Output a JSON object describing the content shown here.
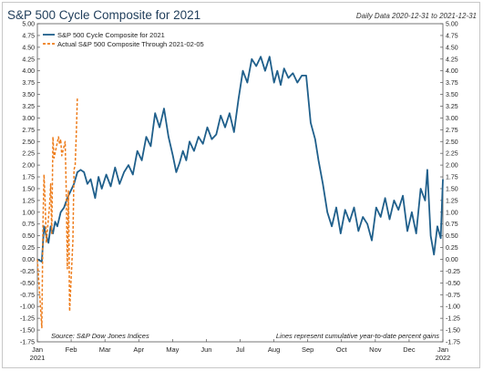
{
  "chart_data": {
    "type": "line",
    "title": "S&P 500 Cycle Composite for 2021",
    "subtitle": "Daily Data 2020-12-31 to 2021-12-31",
    "source": "Source:  S&P Dow Jones Indices",
    "footnote": "Lines represent cumulative year-to-date percent gains",
    "ylim": [
      -1.75,
      5.0
    ],
    "y_ticks": [
      "5.00",
      "4.75",
      "4.50",
      "4.25",
      "4.00",
      "3.75",
      "3.50",
      "3.25",
      "3.00",
      "2.75",
      "2.50",
      "2.25",
      "2.00",
      "1.75",
      "1.50",
      "1.25",
      "1.00",
      "0.75",
      "0.50",
      "0.25",
      "0.00",
      "-0.25",
      "-0.50",
      "-0.75",
      "-1.00",
      "-1.25",
      "-1.50",
      "-1.75"
    ],
    "x_ticks": [
      {
        "label": "Jan",
        "sub": "2021"
      },
      {
        "label": "Feb",
        "sub": ""
      },
      {
        "label": "Mar",
        "sub": ""
      },
      {
        "label": "Apr",
        "sub": ""
      },
      {
        "label": "May",
        "sub": ""
      },
      {
        "label": "Jun",
        "sub": ""
      },
      {
        "label": "Jul",
        "sub": ""
      },
      {
        "label": "Aug",
        "sub": ""
      },
      {
        "label": "Sep",
        "sub": ""
      },
      {
        "label": "Oct",
        "sub": ""
      },
      {
        "label": "Nov",
        "sub": ""
      },
      {
        "label": "Dec",
        "sub": ""
      },
      {
        "label": "Jan",
        "sub": "2022"
      }
    ],
    "legend_position": "top-left",
    "grid": false,
    "series": [
      {
        "name": "S&P 500 Cycle Composite for 2021",
        "color": "#1f5f8b",
        "style": "solid",
        "x": [
          "2020-12-31",
          "2021-01-04",
          "2021-01-06",
          "2021-01-08",
          "2021-01-10",
          "2021-01-12",
          "2021-01-14",
          "2021-01-16",
          "2021-01-18",
          "2021-01-21",
          "2021-01-24",
          "2021-01-27",
          "2021-01-30",
          "2021-02-02",
          "2021-02-05",
          "2021-02-08",
          "2021-02-11",
          "2021-02-14",
          "2021-02-17",
          "2021-02-21",
          "2021-02-24",
          "2021-02-27",
          "2021-03-03",
          "2021-03-07",
          "2021-03-11",
          "2021-03-15",
          "2021-03-19",
          "2021-03-23",
          "2021-03-27",
          "2021-03-31",
          "2021-04-04",
          "2021-04-08",
          "2021-04-12",
          "2021-04-16",
          "2021-04-20",
          "2021-04-24",
          "2021-04-28",
          "2021-05-02",
          "2021-05-05",
          "2021-05-08",
          "2021-05-11",
          "2021-05-14",
          "2021-05-17",
          "2021-05-21",
          "2021-05-25",
          "2021-05-29",
          "2021-06-02",
          "2021-06-06",
          "2021-06-10",
          "2021-06-14",
          "2021-06-18",
          "2021-06-22",
          "2021-06-26",
          "2021-06-30",
          "2021-07-04",
          "2021-07-08",
          "2021-07-12",
          "2021-07-16",
          "2021-07-20",
          "2021-07-24",
          "2021-07-28",
          "2021-08-01",
          "2021-08-04",
          "2021-08-07",
          "2021-08-10",
          "2021-08-14",
          "2021-08-18",
          "2021-08-22",
          "2021-08-26",
          "2021-08-30",
          "2021-09-03",
          "2021-09-07",
          "2021-09-10",
          "2021-09-14",
          "2021-09-18",
          "2021-09-22",
          "2021-09-26",
          "2021-09-30",
          "2021-10-04",
          "2021-10-08",
          "2021-10-12",
          "2021-10-16",
          "2021-10-20",
          "2021-10-24",
          "2021-10-28",
          "2021-11-01",
          "2021-11-05",
          "2021-11-09",
          "2021-11-13",
          "2021-11-17",
          "2021-11-21",
          "2021-11-25",
          "2021-11-29",
          "2021-12-03",
          "2021-12-07",
          "2021-12-11",
          "2021-12-15",
          "2021-12-17",
          "2021-12-20",
          "2021-12-23",
          "2021-12-26",
          "2021-12-29",
          "2021-12-31"
        ],
        "y": [
          0.0,
          -0.05,
          0.7,
          0.5,
          0.35,
          0.7,
          0.55,
          0.8,
          0.7,
          1.0,
          1.1,
          1.3,
          1.45,
          1.6,
          1.85,
          1.9,
          1.85,
          1.6,
          1.7,
          1.3,
          1.75,
          1.5,
          1.8,
          1.55,
          1.95,
          1.6,
          1.85,
          2.0,
          1.8,
          2.3,
          2.1,
          2.6,
          2.4,
          3.1,
          2.8,
          3.2,
          2.6,
          2.2,
          1.85,
          2.05,
          2.3,
          2.1,
          2.5,
          2.3,
          2.6,
          2.45,
          2.8,
          2.55,
          2.65,
          3.05,
          2.8,
          3.1,
          2.7,
          3.4,
          4.0,
          3.75,
          4.25,
          4.1,
          4.3,
          4.0,
          4.3,
          3.75,
          4.0,
          3.7,
          4.05,
          3.85,
          3.95,
          3.75,
          3.9,
          3.9,
          2.9,
          2.55,
          2.1,
          1.6,
          1.0,
          0.7,
          1.1,
          0.55,
          1.05,
          0.8,
          1.1,
          0.6,
          0.9,
          0.75,
          0.4,
          1.1,
          0.9,
          1.3,
          0.85,
          1.25,
          1.05,
          1.35,
          0.6,
          1.0,
          0.55,
          1.5,
          1.25,
          1.9,
          0.5,
          0.1,
          0.7,
          0.45,
          1.7
        ]
      },
      {
        "name": "Actual S&P 500 Composite Through 2021-02-05",
        "color": "#ee7c1a",
        "style": "dashed",
        "x": [
          "2020-12-31",
          "2021-01-04",
          "2021-01-05",
          "2021-01-06",
          "2021-01-07",
          "2021-01-08",
          "2021-01-11",
          "2021-01-12",
          "2021-01-13",
          "2021-01-14",
          "2021-01-15",
          "2021-01-19",
          "2021-01-20",
          "2021-01-21",
          "2021-01-22",
          "2021-01-25",
          "2021-01-26",
          "2021-01-27",
          "2021-01-28",
          "2021-01-29",
          "2021-02-01",
          "2021-02-02",
          "2021-02-03",
          "2021-02-04",
          "2021-02-05"
        ],
        "y": [
          0.0,
          -1.45,
          0.7,
          1.8,
          1.25,
          0.35,
          1.15,
          1.6,
          0.55,
          2.6,
          2.15,
          2.6,
          2.45,
          2.55,
          2.2,
          2.5,
          1.45,
          -0.2,
          1.45,
          -1.1,
          0.4,
          1.9,
          2.0,
          2.65,
          3.45
        ]
      }
    ]
  }
}
